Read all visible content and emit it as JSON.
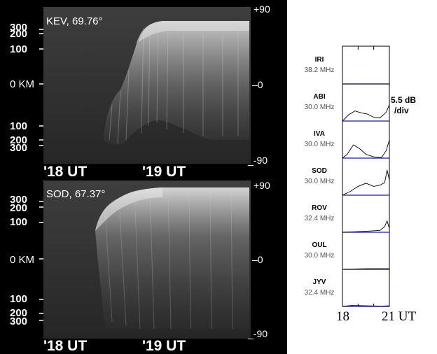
{
  "keograms": [
    {
      "title": "KEV, 69.76°",
      "y_ticks_km": [
        "300",
        "200",
        "100",
        "0 KM",
        "100",
        "200",
        "300"
      ],
      "right_ticks": [
        "+90",
        "–0",
        "_-90"
      ],
      "time_labels": [
        "'18 UT",
        "'19 UT"
      ]
    },
    {
      "title": "SOD, 67.37°",
      "y_ticks_km": [
        "300",
        "200",
        "100",
        "0 KM",
        "100",
        "200",
        "300"
      ],
      "right_ticks": [
        "+90",
        "–0",
        "_-90"
      ],
      "time_labels": [
        "'18 UT",
        "'19 UT"
      ]
    }
  ],
  "riometer": {
    "scale_label_1": "5.5 dB",
    "scale_label_2": "/div",
    "x_tick_start": "18",
    "x_tick_end": "21 UT",
    "trace_color": "#1a1aa8",
    "stations": [
      {
        "name": "IRI",
        "freq": "38.2 MHz"
      },
      {
        "name": "ABI",
        "freq": "30.0 MHz"
      },
      {
        "name": "IVA",
        "freq": "30.0 MHz"
      },
      {
        "name": "SOD",
        "freq": "30.0 MHz"
      },
      {
        "name": "ROV",
        "freq": "32.4 MHz"
      },
      {
        "name": "OUL",
        "freq": "30.0 MHz"
      },
      {
        "name": "JYV",
        "freq": "32.4 MHz"
      }
    ]
  },
  "chart_data": [
    {
      "type": "heatmap",
      "title": "KEV, 69.76°",
      "xlabel": "UT",
      "ylabel": "km",
      "x_ticks": [
        "18 UT",
        "19 UT"
      ],
      "y_ticks": [
        "300",
        "200",
        "100",
        "0",
        "100",
        "200",
        "300"
      ],
      "right_axis_ticks": [
        "+90",
        "0",
        "-90"
      ]
    },
    {
      "type": "heatmap",
      "title": "SOD, 67.37°",
      "xlabel": "UT",
      "ylabel": "km",
      "x_ticks": [
        "18 UT",
        "19 UT"
      ],
      "y_ticks": [
        "300",
        "200",
        "100",
        "0",
        "100",
        "200",
        "300"
      ],
      "right_axis_ticks": [
        "+90",
        "0",
        "-90"
      ]
    },
    {
      "type": "line",
      "xlabel": "UT",
      "xlim": [
        18,
        21
      ],
      "scale": "5.5 dB /div",
      "series": [
        {
          "name": "IRI 38.2 MHz",
          "x": [
            18.0,
            21.0
          ],
          "y": [
            0.0,
            0.0
          ]
        },
        {
          "name": "ABI 30.0 MHz",
          "x": [
            18.0,
            18.4,
            18.8,
            19.2,
            19.6,
            20.0,
            20.4,
            20.8,
            21.0
          ],
          "y": [
            0.0,
            1.0,
            1.6,
            1.3,
            1.1,
            0.6,
            0.5,
            1.4,
            2.6
          ]
        },
        {
          "name": "IVA 30.0 MHz",
          "x": [
            18.0,
            18.3,
            18.7,
            19.1,
            19.5,
            20.0,
            20.5,
            20.8,
            21.0
          ],
          "y": [
            0.0,
            0.6,
            2.1,
            1.5,
            0.6,
            0.2,
            0.1,
            1.2,
            2.9
          ]
        },
        {
          "name": "SOD 30.0 MHz",
          "x": [
            18.0,
            18.5,
            19.0,
            19.5,
            20.0,
            20.4,
            20.7,
            20.85,
            21.0
          ],
          "y": [
            0.0,
            0.6,
            1.4,
            1.9,
            1.4,
            1.6,
            2.0,
            4.0,
            2.4
          ]
        },
        {
          "name": "ROV 32.4 MHz",
          "x": [
            18.0,
            19.0,
            19.8,
            20.4,
            20.7,
            20.85,
            21.0
          ],
          "y": [
            0.0,
            0.1,
            0.2,
            0.3,
            0.9,
            1.8,
            0.6
          ]
        },
        {
          "name": "OUL 30.0 MHz",
          "x": [
            18.0,
            19.5,
            21.0
          ],
          "y": [
            0.0,
            0.1,
            0.1
          ]
        },
        {
          "name": "JYV 32.4 MHz",
          "x": [
            18.0,
            18.6,
            19.5,
            20.5,
            21.0
          ],
          "y": [
            0.0,
            0.15,
            0.1,
            0.05,
            0.1
          ]
        }
      ]
    }
  ]
}
